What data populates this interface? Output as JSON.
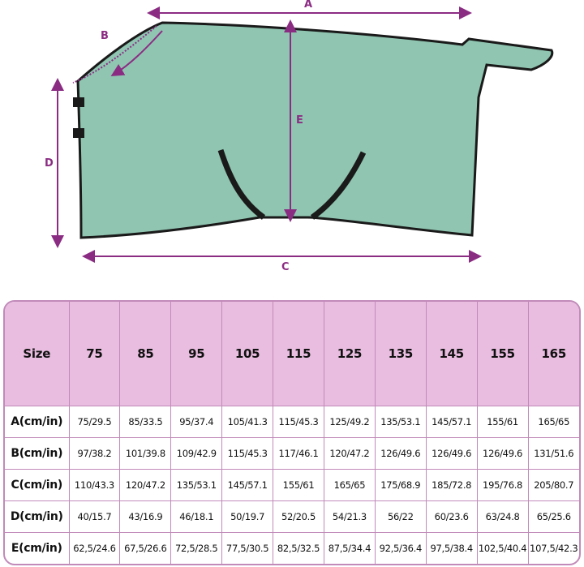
{
  "diagram": {
    "labels": {
      "a": "A",
      "b": "B",
      "c": "C",
      "d": "D",
      "e": "E"
    },
    "colors": {
      "rug": "#8fc5b1",
      "trim": "#1a1a1a",
      "arrow": "#8b2c83"
    }
  },
  "table": {
    "header": [
      "Size",
      "75",
      "85",
      "95",
      "105",
      "115",
      "125",
      "135",
      "145",
      "155",
      "165"
    ],
    "rows": [
      {
        "label": "A(cm/in)",
        "values": [
          "75/29.5",
          "85/33.5",
          "95/37.4",
          "105/41.3",
          "115/45.3",
          "125/49.2",
          "135/53.1",
          "145/57.1",
          "155/61",
          "165/65"
        ]
      },
      {
        "label": "B(cm/in)",
        "values": [
          "97/38.2",
          "101/39.8",
          "109/42.9",
          "115/45.3",
          "117/46.1",
          "120/47.2",
          "126/49.6",
          "126/49.6",
          "126/49.6",
          "131/51.6"
        ]
      },
      {
        "label": "C(cm/in)",
        "values": [
          "110/43.3",
          "120/47.2",
          "135/53.1",
          "145/57.1",
          "155/61",
          "165/65",
          "175/68.9",
          "185/72.8",
          "195/76.8",
          "205/80.7"
        ]
      },
      {
        "label": "D(cm/in)",
        "values": [
          "40/15.7",
          "43/16.9",
          "46/18.1",
          "50/19.7",
          "52/20.5",
          "54/21.3",
          "56/22",
          "60/23.6",
          "63/24.8",
          "65/25.6"
        ]
      },
      {
        "label": "E(cm/in)",
        "values": [
          "62,5/24.6",
          "67,5/26.6",
          "72,5/28.5",
          "77,5/30.5",
          "82,5/32.5",
          "87,5/34.4",
          "92,5/36.4",
          "97,5/38.4",
          "102,5/40.4",
          "107,5/42.3"
        ]
      }
    ],
    "header_color": "#e9bde0",
    "border_color": "#c18ab9"
  }
}
